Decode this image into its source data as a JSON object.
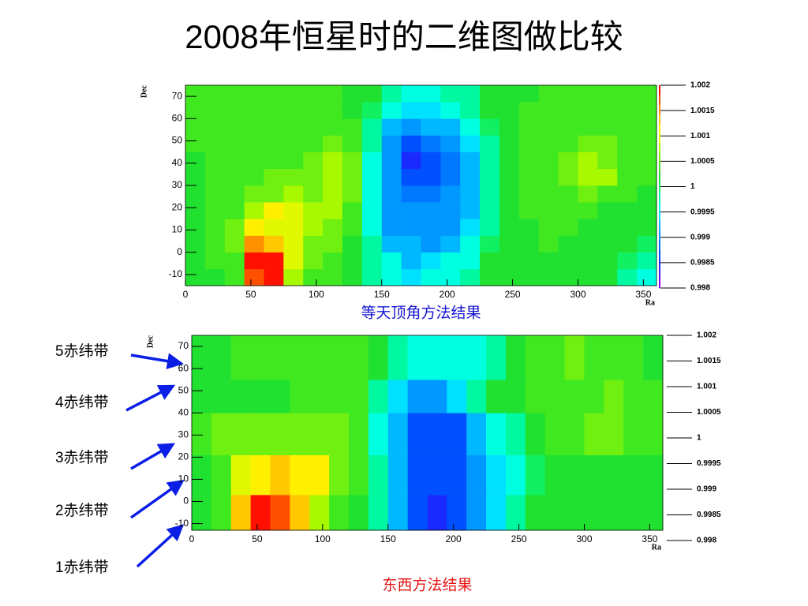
{
  "title": "2008年恒星时的二维图做比较",
  "annotations": [
    "5赤纬带",
    "4赤纬带",
    "3赤纬带",
    "2赤纬带",
    "1赤纬带"
  ],
  "chart_data": [
    {
      "type": "heatmap",
      "caption": "等天顶角方法结果",
      "xlabel": "Ra",
      "ylabel": "Dec",
      "xbins": [
        0,
        15,
        30,
        45,
        60,
        75,
        90,
        105,
        120,
        135,
        150,
        165,
        180,
        195,
        210,
        225,
        240,
        255,
        270,
        285,
        300,
        315,
        330,
        345,
        360
      ],
      "ybins": [
        -15,
        -7.5,
        0,
        7.5,
        15,
        22.5,
        30,
        37.5,
        45,
        52.5,
        60,
        67.5,
        75
      ],
      "xlim": [
        0,
        360
      ],
      "ylim": [
        -15,
        75
      ],
      "zlim": [
        0.998,
        1.002
      ],
      "xticks": [
        0,
        50,
        100,
        150,
        200,
        250,
        300,
        350
      ],
      "yticks": [
        -10,
        0,
        10,
        20,
        30,
        40,
        50,
        60,
        70
      ],
      "zticks": [
        0.998,
        0.9985,
        0.999,
        0.9995,
        1,
        1.0005,
        1.001,
        1.0015,
        1.002
      ],
      "palette": [
        "#8a00ff",
        "#5a10ff",
        "#1a2aff",
        "#0050ff",
        "#0078ff",
        "#0098ff",
        "#00b8ff",
        "#00e0ff",
        "#00ffe0",
        "#00f8a0",
        "#10f060",
        "#20e030",
        "#40e820",
        "#70f010",
        "#a8f800",
        "#e0f800",
        "#fff000",
        "#ffc800",
        "#ff9000",
        "#ff5000",
        "#ff1000"
      ],
      "z": [
        [
          1.0002,
          1.0002,
          1.0004,
          1.0018,
          1.0019,
          1.0008,
          1.0004,
          1.0003,
          1.0002,
          0.9998,
          0.9997,
          0.9995,
          0.9996,
          0.9997,
          0.9998,
          1.0001,
          1.0002,
          1.0002,
          1.0002,
          1.0001,
          1.0002,
          1.0001,
          0.9999,
          0.9997
        ],
        [
          1.0002,
          1.0003,
          1.0004,
          1.002,
          1.002,
          1.0009,
          1.0005,
          1.0004,
          1.0002,
          0.9998,
          0.9996,
          0.9993,
          0.9994,
          0.9996,
          0.9997,
          1.0001,
          1.0002,
          1.0002,
          1.0002,
          1.0002,
          1.0001,
          1.0001,
          1.0,
          0.9999
        ],
        [
          1.0002,
          1.0003,
          1.0005,
          1.0015,
          1.0014,
          1.001,
          1.0006,
          1.0005,
          1.0002,
          0.9998,
          0.9993,
          0.9992,
          0.9991,
          0.9993,
          0.9996,
          1.0,
          1.0002,
          1.0002,
          1.0003,
          1.0002,
          1.0002,
          1.0002,
          1.0001,
          1.0
        ],
        [
          1.0001,
          1.0003,
          1.0005,
          1.0011,
          1.001,
          1.0009,
          1.0007,
          1.0006,
          1.0003,
          0.9997,
          0.9991,
          0.9991,
          0.999,
          0.9991,
          0.9994,
          0.9999,
          1.0002,
          1.0002,
          1.0003,
          1.0003,
          1.0002,
          1.0002,
          1.0002,
          1.0001
        ],
        [
          1.0001,
          1.0003,
          1.0004,
          1.0008,
          1.0011,
          1.001,
          1.0008,
          1.0007,
          1.0004,
          0.9997,
          0.999,
          0.999,
          0.999,
          0.999,
          0.9993,
          0.9998,
          1.0002,
          1.0003,
          1.0003,
          1.0003,
          1.0003,
          1.0002,
          1.0002,
          1.0002
        ],
        [
          1.0002,
          1.0003,
          1.0004,
          1.0005,
          1.0006,
          1.0008,
          1.0006,
          1.0008,
          1.0005,
          0.9997,
          0.999,
          0.9989,
          0.9989,
          0.999,
          0.9992,
          0.9998,
          1.0002,
          1.0003,
          1.0003,
          1.0004,
          1.0005,
          1.0004,
          1.0003,
          1.0002
        ],
        [
          1.0002,
          1.0003,
          1.0003,
          1.0004,
          1.0005,
          1.0005,
          1.0005,
          1.0008,
          1.0005,
          0.9997,
          0.999,
          0.9987,
          0.9987,
          0.9989,
          0.9992,
          0.9998,
          1.0002,
          1.0003,
          1.0004,
          1.0005,
          1.0007,
          1.0007,
          1.0004,
          1.0003
        ],
        [
          1.0002,
          1.0003,
          1.0003,
          1.0004,
          1.0004,
          1.0004,
          1.0005,
          1.0007,
          1.0005,
          0.9997,
          0.999,
          0.9985,
          0.9987,
          0.9989,
          0.9992,
          0.9998,
          1.0002,
          1.0003,
          1.0004,
          1.0005,
          1.0007,
          1.0006,
          1.0004,
          1.0003
        ],
        [
          1.0003,
          1.0003,
          1.0003,
          1.0004,
          1.0003,
          1.0004,
          1.0004,
          1.0006,
          1.0004,
          0.9998,
          0.9991,
          0.9987,
          0.9988,
          0.999,
          0.9994,
          0.9999,
          1.0002,
          1.0003,
          1.0004,
          1.0004,
          1.0005,
          1.0005,
          1.0004,
          1.0003
        ],
        [
          1.0003,
          1.0003,
          1.0003,
          1.0003,
          1.0003,
          1.0003,
          1.0004,
          1.0004,
          1.0003,
          0.9999,
          0.9993,
          0.9991,
          0.9992,
          0.9993,
          0.9996,
          1.0,
          1.0002,
          1.0003,
          1.0003,
          1.0004,
          1.0004,
          1.0003,
          1.0003,
          1.0003
        ],
        [
          1.0003,
          1.0003,
          1.0003,
          1.0003,
          1.0003,
          1.0003,
          1.0003,
          1.0003,
          1.0002,
          1.0,
          0.9996,
          0.9995,
          0.9995,
          0.9996,
          0.9998,
          1.0001,
          1.0002,
          1.0003,
          1.0003,
          1.0003,
          1.0003,
          1.0003,
          1.0003,
          1.0003
        ],
        [
          1.0003,
          1.0003,
          1.0003,
          1.0003,
          1.0003,
          1.0003,
          1.0003,
          1.0003,
          1.0002,
          1.0001,
          0.9998,
          0.9997,
          0.9997,
          0.9998,
          0.9999,
          1.0001,
          1.0002,
          1.0002,
          1.0003,
          1.0003,
          1.0003,
          1.0003,
          1.0003,
          1.0003
        ]
      ]
    },
    {
      "type": "heatmap",
      "caption": "东西方法结果",
      "xlabel": "Ra",
      "ylabel": "Dec",
      "xbins": [
        0,
        15,
        30,
        45,
        60,
        75,
        90,
        105,
        120,
        135,
        150,
        165,
        180,
        195,
        210,
        225,
        240,
        255,
        270,
        285,
        300,
        315,
        330,
        345,
        360
      ],
      "ybins": [
        -13,
        3,
        21,
        40,
        55,
        75
      ],
      "xlim": [
        0,
        360
      ],
      "ylim": [
        -13,
        75
      ],
      "zlim": [
        0.998,
        1.002
      ],
      "xticks": [
        0,
        50,
        100,
        150,
        200,
        250,
        300,
        350
      ],
      "yticks": [
        -10,
        0,
        10,
        20,
        30,
        40,
        50,
        60,
        70
      ],
      "zticks": [
        0.998,
        0.9985,
        0.999,
        0.9995,
        1,
        1.0005,
        1.001,
        1.0015,
        1.002
      ],
      "palette": [
        "#8a00ff",
        "#5a10ff",
        "#1a2aff",
        "#0050ff",
        "#0078ff",
        "#0098ff",
        "#00b8ff",
        "#00e0ff",
        "#00ffe0",
        "#00f8a0",
        "#10f060",
        "#20e030",
        "#40e820",
        "#70f010",
        "#a8f800",
        "#e0f800",
        "#fff000",
        "#ffc800",
        "#ff9000",
        "#ff5000",
        "#ff1000"
      ],
      "z": [
        [
          1.0002,
          1.0003,
          1.0014,
          1.002,
          1.0018,
          1.0014,
          1.0008,
          1.0004,
          1.0002,
          0.9998,
          0.9992,
          0.9987,
          0.9985,
          0.9987,
          0.9991,
          0.9995,
          0.9998,
          1.0001,
          1.0002,
          1.0002,
          1.0002,
          1.0002,
          1.0002,
          1.0002
        ],
        [
          1.0002,
          1.0003,
          1.0009,
          1.0011,
          1.0014,
          1.0011,
          1.0011,
          1.0005,
          1.0003,
          0.9998,
          0.9992,
          0.9987,
          0.9987,
          0.9987,
          0.9991,
          0.9994,
          0.9997,
          1.0,
          1.0002,
          1.0002,
          1.0002,
          1.0002,
          1.0002,
          1.0002
        ],
        [
          1.0003,
          1.0005,
          1.0006,
          1.0006,
          1.0005,
          1.0006,
          1.0006,
          1.0005,
          1.0003,
          0.9997,
          0.9992,
          0.9987,
          0.9987,
          0.9987,
          0.9992,
          0.9996,
          0.9999,
          1.0002,
          1.0003,
          1.0003,
          1.0005,
          1.0005,
          1.0003,
          1.0003
        ],
        [
          1.0002,
          1.0002,
          1.0002,
          1.0002,
          1.0002,
          1.0003,
          1.0003,
          1.0003,
          1.0003,
          0.9998,
          0.9995,
          0.9991,
          0.9991,
          0.9994,
          0.9998,
          1.0002,
          1.0002,
          1.0003,
          1.0003,
          1.0004,
          1.0004,
          1.0006,
          1.0003,
          1.0003
        ],
        [
          1.0002,
          1.0002,
          1.0003,
          1.0003,
          1.0003,
          1.0003,
          1.0003,
          1.0004,
          1.0004,
          1.0002,
          0.9998,
          0.9997,
          0.9997,
          0.9997,
          0.9997,
          0.9999,
          1.0002,
          1.0003,
          1.0003,
          1.0005,
          1.0004,
          1.0003,
          1.0003,
          1.0002
        ]
      ]
    }
  ]
}
